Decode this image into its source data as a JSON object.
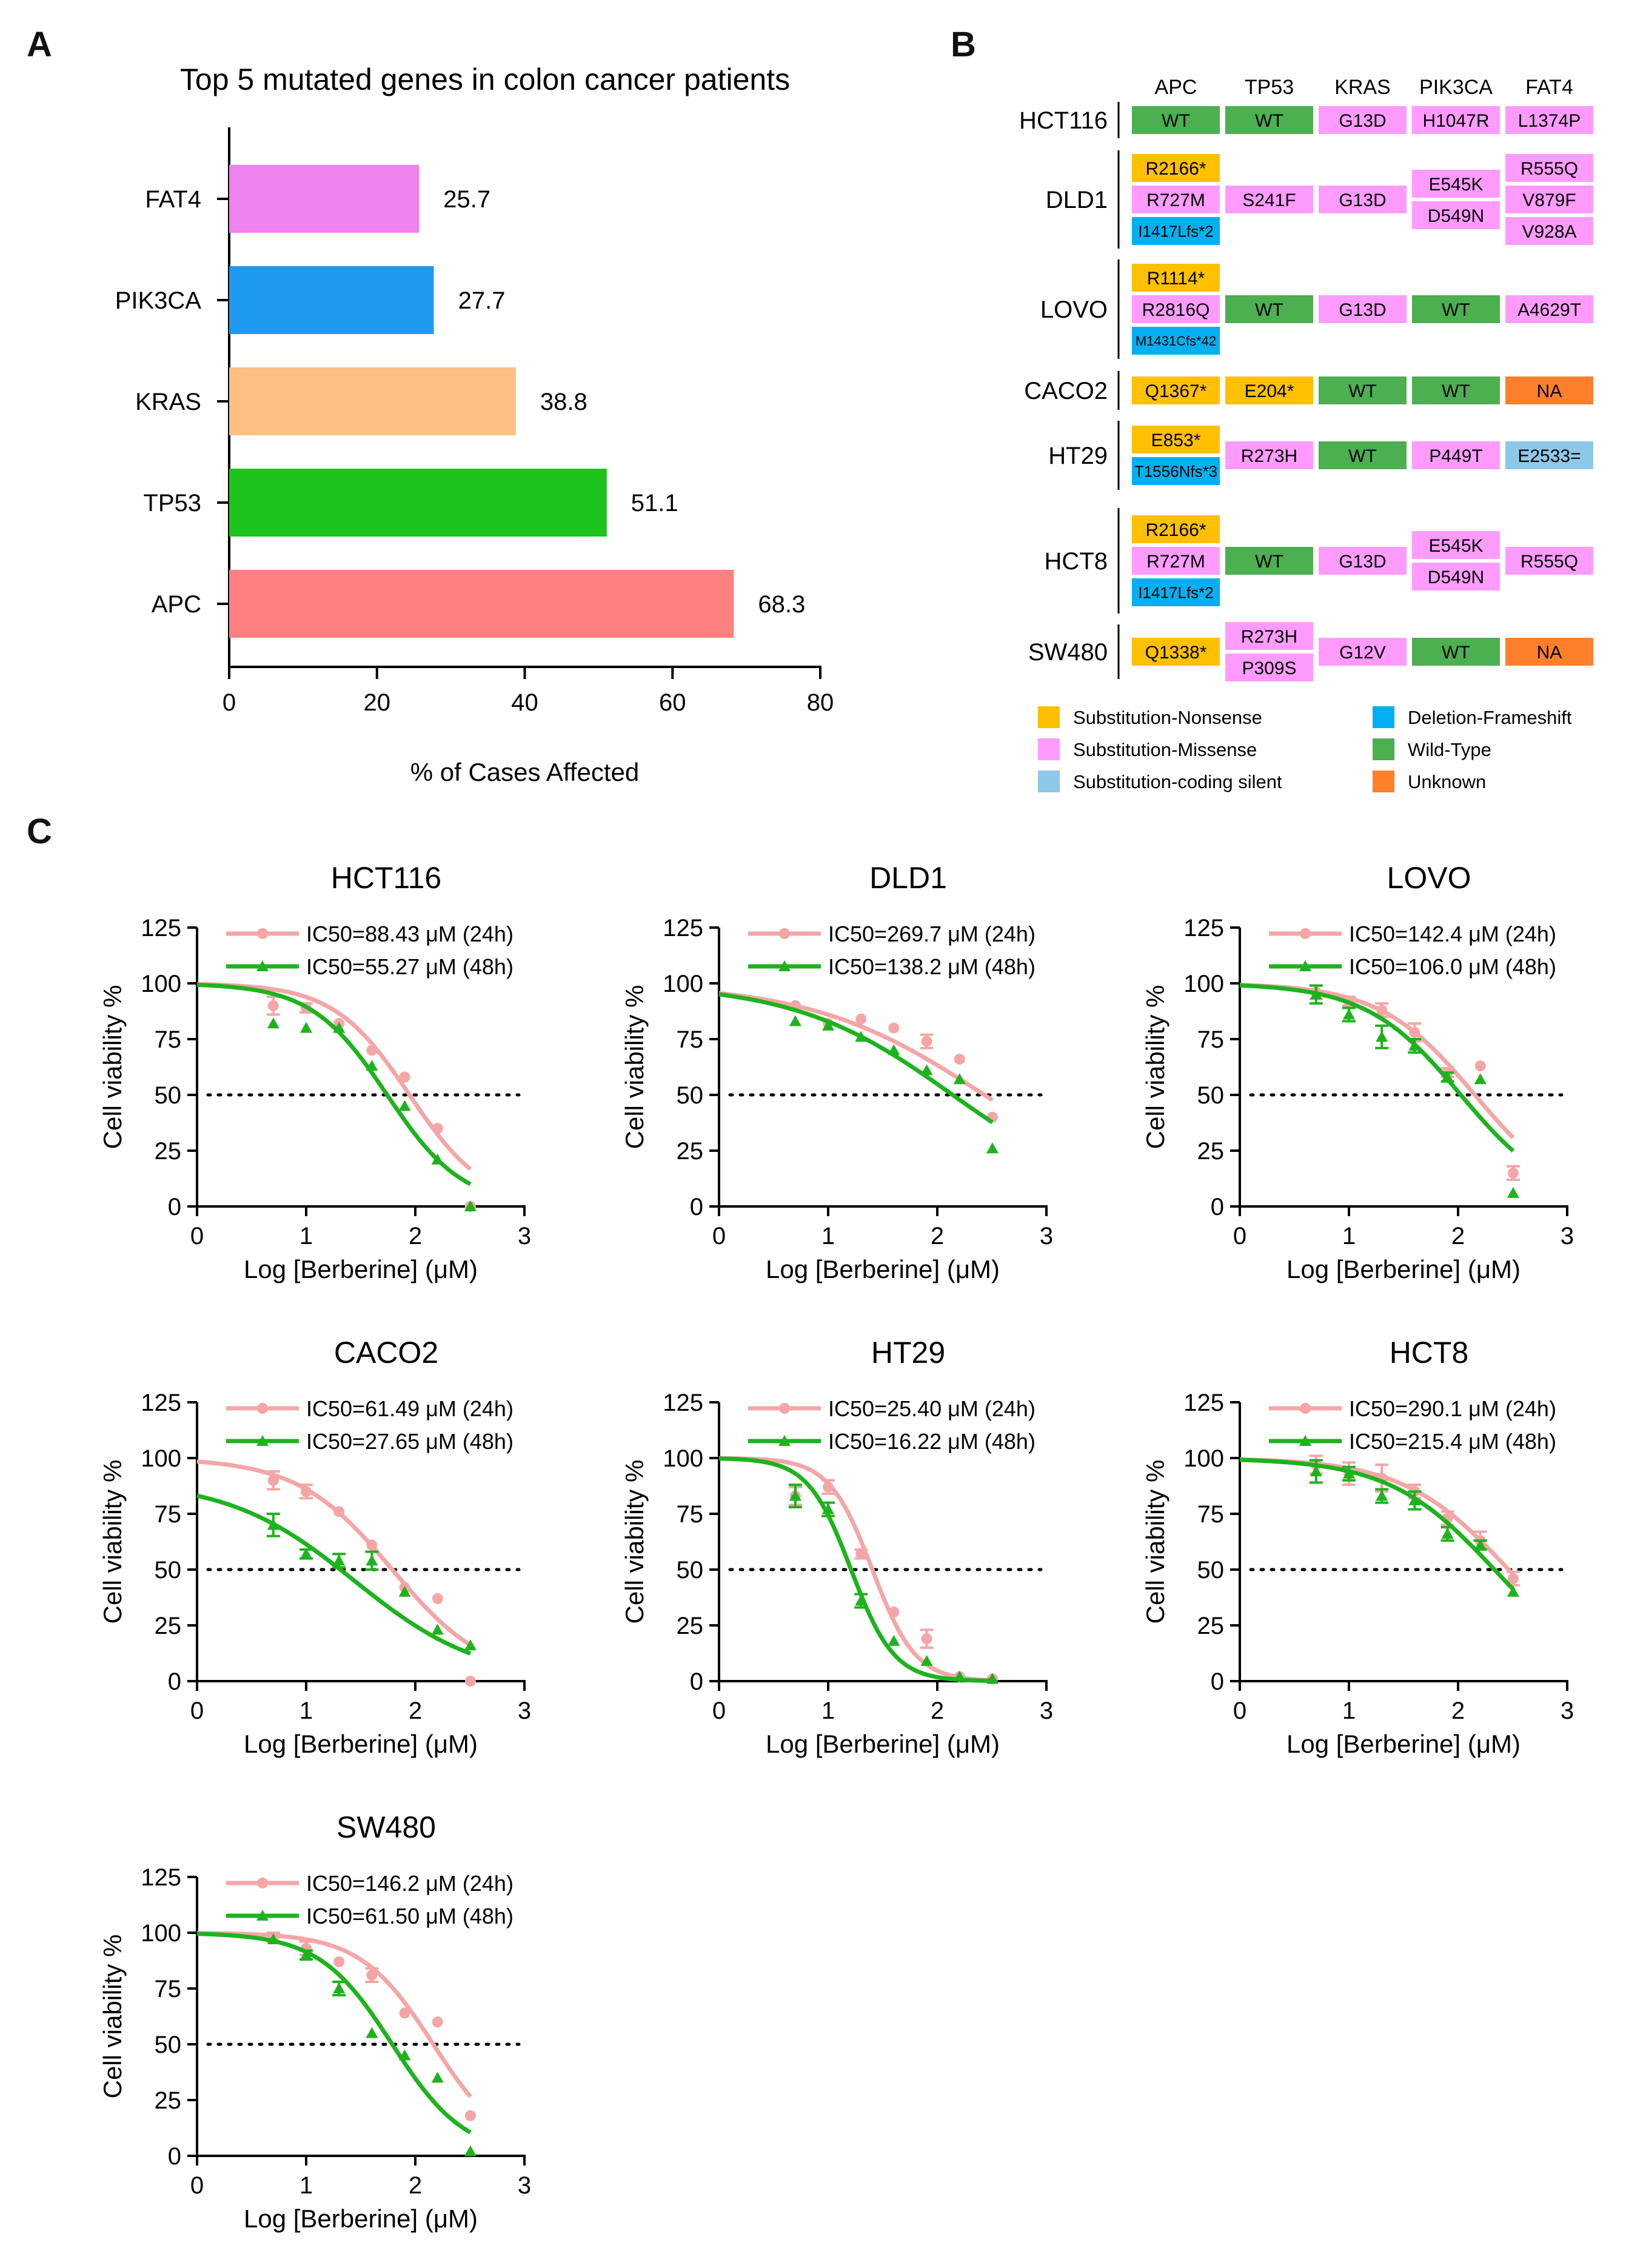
{
  "panels": {
    "a": "A",
    "b": "B",
    "c": "C"
  },
  "colors": {
    "nonsense": "#FFC000",
    "missense": "#FF9BFF",
    "silent": "#8EC8E8",
    "frameshift": "#00B0F0",
    "wildtype": "#4CAF50",
    "unknown": "#FF7F2A",
    "curve24": "#F4A6A6",
    "curve48": "#1DB31D"
  },
  "chart_data": [
    {
      "type": "bar",
      "orientation": "horizontal",
      "title": "Top 5 mutated genes in colon cancer patients",
      "xlabel": "% of Cases Affected",
      "ylabel": "",
      "xlim": [
        0,
        80
      ],
      "xticks": [
        "0",
        "20",
        "40",
        "60",
        "80"
      ],
      "categories": [
        "FAT4",
        "PIK3CA",
        "KRAS",
        "TP53",
        "APC"
      ],
      "values": [
        25.7,
        27.7,
        38.8,
        51.1,
        68.3
      ],
      "value_labels": [
        "25.7",
        "27.7",
        "38.8",
        "51.1",
        "68.3"
      ],
      "bar_colors": [
        "#EE82EE",
        "#1E9BF0",
        "#FFBE82",
        "#1DC41D",
        "#FF8080"
      ]
    },
    {
      "type": "table",
      "genes": [
        "APC",
        "TP53",
        "KRAS",
        "PIK3CA",
        "FAT4"
      ],
      "rows": [
        {
          "cell_line": "HCT116",
          "cells": [
            [
              {
                "t": "WT",
                "c": "wildtype"
              }
            ],
            [
              {
                "t": "WT",
                "c": "wildtype"
              }
            ],
            [
              {
                "t": "G13D",
                "c": "missense"
              }
            ],
            [
              {
                "t": "H1047R",
                "c": "missense"
              }
            ],
            [
              {
                "t": "L1374P",
                "c": "missense"
              }
            ]
          ]
        },
        {
          "cell_line": "DLD1",
          "cells": [
            [
              {
                "t": "R2166*",
                "c": "nonsense"
              },
              {
                "t": "R727M",
                "c": "missense"
              },
              {
                "t": "I1417Lfs*2",
                "c": "frameshift"
              }
            ],
            [
              {
                "t": "S241F",
                "c": "missense"
              }
            ],
            [
              {
                "t": "G13D",
                "c": "missense"
              }
            ],
            [
              {
                "t": "E545K",
                "c": "missense"
              },
              {
                "t": "D549N",
                "c": "missense"
              }
            ],
            [
              {
                "t": "R555Q",
                "c": "missense"
              },
              {
                "t": "V879F",
                "c": "missense"
              },
              {
                "t": "V928A",
                "c": "missense"
              }
            ]
          ]
        },
        {
          "cell_line": "LOVO",
          "cells": [
            [
              {
                "t": "R1114*",
                "c": "nonsense"
              },
              {
                "t": "R2816Q",
                "c": "missense"
              },
              {
                "t": "M1431Cfs*42",
                "c": "frameshift"
              }
            ],
            [
              {
                "t": "WT",
                "c": "wildtype"
              }
            ],
            [
              {
                "t": "G13D",
                "c": "missense"
              }
            ],
            [
              {
                "t": "WT",
                "c": "wildtype"
              }
            ],
            [
              {
                "t": "A4629T",
                "c": "missense"
              }
            ]
          ]
        },
        {
          "cell_line": "CACO2",
          "cells": [
            [
              {
                "t": "Q1367*",
                "c": "nonsense"
              }
            ],
            [
              {
                "t": "E204*",
                "c": "nonsense"
              }
            ],
            [
              {
                "t": "WT",
                "c": "wildtype"
              }
            ],
            [
              {
                "t": "WT",
                "c": "wildtype"
              }
            ],
            [
              {
                "t": "NA",
                "c": "unknown"
              }
            ]
          ]
        },
        {
          "cell_line": "HT29",
          "cells": [
            [
              {
                "t": "E853*",
                "c": "nonsense"
              },
              {
                "t": "T1556Nfs*3",
                "c": "frameshift"
              }
            ],
            [
              {
                "t": "R273H",
                "c": "missense"
              }
            ],
            [
              {
                "t": "WT",
                "c": "wildtype"
              }
            ],
            [
              {
                "t": "P449T",
                "c": "missense"
              }
            ],
            [
              {
                "t": "E2533=",
                "c": "silent"
              }
            ]
          ]
        },
        {
          "cell_line": "HCT8",
          "cells": [
            [
              {
                "t": "R2166*",
                "c": "nonsense"
              },
              {
                "t": "R727M",
                "c": "missense"
              },
              {
                "t": "I1417Lfs*2",
                "c": "frameshift"
              }
            ],
            [
              {
                "t": "WT",
                "c": "wildtype"
              }
            ],
            [
              {
                "t": "G13D",
                "c": "missense"
              }
            ],
            [
              {
                "t": "E545K",
                "c": "missense"
              },
              {
                "t": "D549N",
                "c": "missense"
              }
            ],
            [
              {
                "t": "R555Q",
                "c": "missense"
              }
            ]
          ]
        },
        {
          "cell_line": "SW480",
          "cells": [
            [
              {
                "t": "Q1338*",
                "c": "nonsense"
              }
            ],
            [
              {
                "t": "R273H",
                "c": "missense"
              },
              {
                "t": "P309S",
                "c": "missense"
              }
            ],
            [
              {
                "t": "G12V",
                "c": "missense"
              }
            ],
            [
              {
                "t": "WT",
                "c": "wildtype"
              }
            ],
            [
              {
                "t": "NA",
                "c": "unknown"
              }
            ]
          ]
        }
      ],
      "legend": [
        {
          "label": "Substitution-Nonsense",
          "c": "nonsense"
        },
        {
          "label": "Substitution-Missense",
          "c": "missense"
        },
        {
          "label": "Substitution-coding silent",
          "c": "silent"
        },
        {
          "label": "Deletion-Frameshift",
          "c": "frameshift"
        },
        {
          "label": "Wild-Type",
          "c": "wildtype"
        },
        {
          "label": "Unknown",
          "c": "unknown"
        }
      ]
    },
    {
      "type": "scatter",
      "subtype": "dose-response",
      "xlabel": "Log [Berberine] (μM)",
      "ylabel": "Cell viability %",
      "xlim": [
        0,
        3
      ],
      "ylim": [
        0,
        125
      ],
      "xticks": [
        "0",
        "1",
        "2",
        "3"
      ],
      "yticks": [
        "0",
        "25",
        "50",
        "75",
        "100",
        "125"
      ],
      "reference_line_y": 50,
      "x_doses": [
        0.699,
        1.0,
        1.301,
        1.602,
        1.903,
        2.204,
        2.505
      ],
      "panels": [
        {
          "title": "HCT116",
          "series": [
            {
              "name": "IC50=88.43 μM (24h)",
              "top": 100,
              "bottom": 0,
              "logic50": 1.947,
              "hill": 1.25,
              "y": [
                90,
                89,
                82,
                70,
                58,
                35,
                0
              ],
              "err": [
                4,
                2,
                0,
                0,
                0,
                0,
                0
              ]
            },
            {
              "name": "IC50=55.27 μM (48h)",
              "top": 100,
              "bottom": 0,
              "logic50": 1.742,
              "hill": 1.25,
              "y": [
                82,
                80,
                80,
                63,
                45,
                21,
                0
              ],
              "err": [
                0,
                0,
                0,
                0,
                0,
                0,
                0
              ]
            }
          ]
        },
        {
          "title": "DLD1",
          "series": [
            {
              "name": "IC50=269.7 μM (24h)",
              "top": 100,
              "bottom": 0,
              "logic50": 2.431,
              "hill": 0.55,
              "y": [
                90,
                82,
                84,
                80,
                74,
                66,
                40
              ],
              "err": [
                0,
                0,
                0,
                0,
                3,
                0,
                0
              ]
            },
            {
              "name": "IC50=138.2 μM (48h)",
              "top": 100,
              "bottom": 0,
              "logic50": 2.141,
              "hill": 0.6,
              "y": [
                83,
                81,
                76,
                70,
                61,
                57,
                26
              ],
              "err": [
                0,
                0,
                0,
                0,
                0,
                0,
                0
              ]
            }
          ]
        },
        {
          "title": "LOVO",
          "series": [
            {
              "name": "IC50=142.4 μM (24h)",
              "top": 100,
              "bottom": 0,
              "logic50": 2.154,
              "hill": 1.0,
              "y": [
                96,
                92,
                88,
                78,
                60,
                63,
                15
              ],
              "err": [
                3,
                2,
                3,
                4,
                2,
                0,
                3
              ]
            },
            {
              "name": "IC50=106.0 μM (48h)",
              "top": 100,
              "bottom": 0,
              "logic50": 2.025,
              "hill": 1.0,
              "y": [
                95,
                86,
                76,
                72,
                58,
                57,
                6
              ],
              "err": [
                4,
                3,
                5,
                3,
                2,
                0,
                0
              ]
            }
          ]
        },
        {
          "title": "CACO2",
          "series": [
            {
              "name": "IC50=61.49 μM (24h)",
              "top": 100,
              "bottom": 0,
              "logic50": 1.789,
              "hill": 1.0,
              "y": [
                90,
                85,
                76,
                61,
                42,
                37,
                0
              ],
              "err": [
                4,
                3,
                0,
                0,
                0,
                0,
                0
              ]
            },
            {
              "name": "IC50=27.65 μM (48h)",
              "top": 90,
              "bottom": 0,
              "logic50": 1.442,
              "hill": 0.75,
              "y": [
                70,
                57,
                54,
                54,
                40,
                23,
                16
              ],
              "err": [
                5,
                2,
                3,
                4,
                0,
                0,
                0
              ]
            }
          ]
        },
        {
          "title": "HT29",
          "series": [
            {
              "name": "IC50=25.40 μM (24h)",
              "top": 100,
              "bottom": 0,
              "logic50": 1.405,
              "hill": 2.2,
              "y": [
                83,
                87,
                57,
                31,
                19,
                2,
                1
              ],
              "err": [
                4,
                3,
                2,
                0,
                4,
                0,
                0
              ]
            },
            {
              "name": "IC50=16.22 μM (48h)",
              "top": 100,
              "bottom": 0,
              "logic50": 1.21,
              "hill": 2.2,
              "y": [
                83,
                77,
                36,
                18,
                9,
                2,
                1
              ],
              "err": [
                5,
                3,
                3,
                0,
                0,
                0,
                0
              ]
            }
          ]
        },
        {
          "title": "HCT8",
          "series": [
            {
              "name": "IC50=290.1 μM (24h)",
              "top": 100,
              "bottom": 0,
              "logic50": 2.463,
              "hill": 0.9,
              "y": [
                97,
                93,
                91,
                85,
                73,
                63,
                46
              ],
              "err": [
                4,
                5,
                6,
                3,
                3,
                4,
                3
              ]
            },
            {
              "name": "IC50=215.4 μM (48h)",
              "top": 100,
              "bottom": 0,
              "logic50": 2.333,
              "hill": 0.9,
              "y": [
                94,
                93,
                83,
                81,
                66,
                61,
                40
              ],
              "err": [
                5,
                3,
                3,
                4,
                3,
                2,
                0
              ]
            }
          ]
        },
        {
          "title": "SW480",
          "series": [
            {
              "name": "IC50=146.2 μM (24h)",
              "top": 100,
              "bottom": 0,
              "logic50": 2.165,
              "hill": 1.3,
              "y": [
                98,
                93,
                87,
                81,
                64,
                60,
                18
              ],
              "err": [
                2,
                3,
                0,
                3,
                0,
                0,
                0
              ]
            },
            {
              "name": "IC50=61.50 μM (48h)",
              "top": 100,
              "bottom": 0,
              "logic50": 1.789,
              "hill": 1.3,
              "y": [
                97,
                90,
                75,
                55,
                45,
                35,
                2
              ],
              "err": [
                0,
                2,
                3,
                0,
                0,
                0,
                0
              ]
            }
          ]
        }
      ]
    }
  ]
}
